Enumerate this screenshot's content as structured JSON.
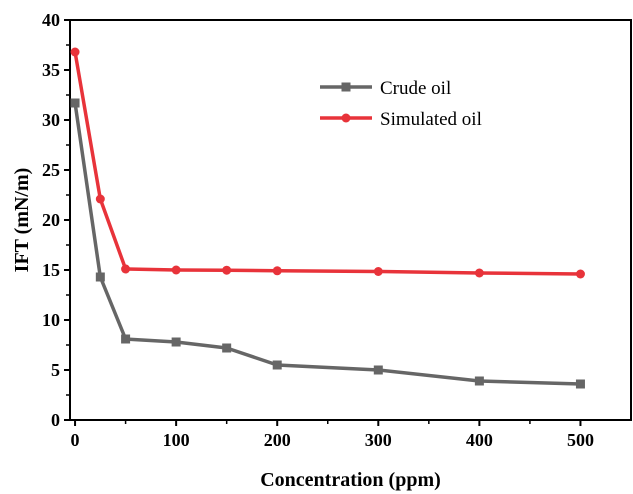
{
  "chart_data": {
    "type": "line",
    "xlabel": "Concentration (ppm)",
    "ylabel": "IFT (mN/m)",
    "xlim": [
      -5,
      550
    ],
    "ylim": [
      0,
      40
    ],
    "x_ticks": [
      0,
      100,
      200,
      300,
      400,
      500
    ],
    "y_ticks": [
      0,
      5,
      10,
      15,
      20,
      25,
      30,
      35,
      40
    ],
    "grid": false,
    "legend_position": "top-right",
    "series": [
      {
        "name": "Crude oil",
        "color": "#666666",
        "marker": "square",
        "x": [
          0,
          25,
          50,
          100,
          150,
          200,
          300,
          400,
          500
        ],
        "y": [
          31.7,
          14.3,
          8.1,
          7.8,
          7.2,
          5.5,
          5.0,
          3.9,
          3.6
        ]
      },
      {
        "name": "Simulated oil",
        "color": "#e8333a",
        "marker": "circle",
        "x": [
          0,
          25,
          50,
          100,
          150,
          200,
          300,
          400,
          500
        ],
        "y": [
          36.8,
          22.1,
          15.1,
          15.0,
          14.98,
          14.92,
          14.85,
          14.7,
          14.6
        ]
      }
    ]
  }
}
